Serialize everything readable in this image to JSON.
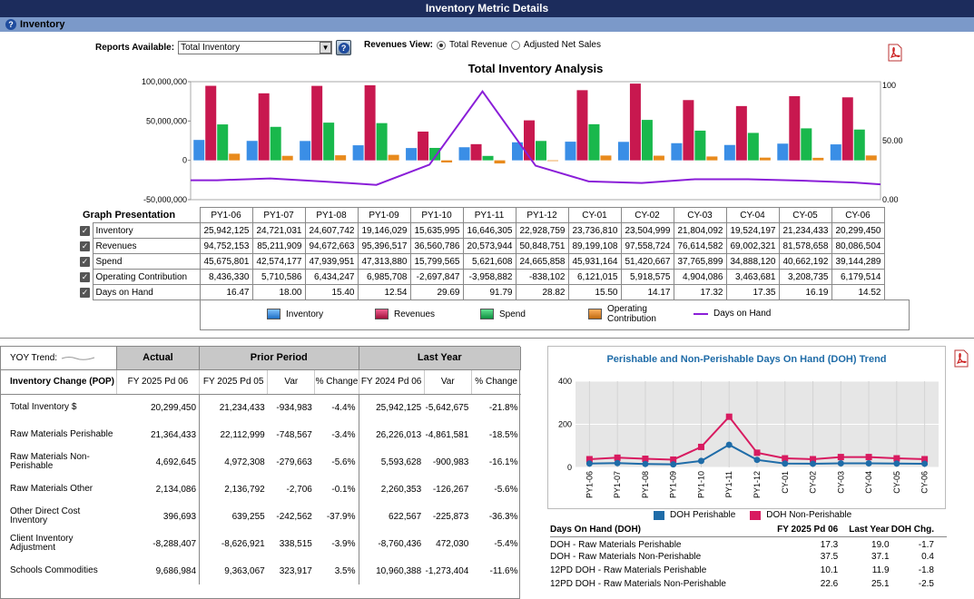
{
  "window": {
    "title": "Inventory Metric Details",
    "section": "Inventory"
  },
  "controls": {
    "reports_label": "Reports Available:",
    "reports_value": "Total Inventory",
    "revenues_label": "Revenues View:",
    "radio_total": "Total Revenue",
    "radio_adjusted": "Adjusted Net Sales",
    "selected_view": "Total Revenue"
  },
  "chart_data": {
    "type": "bar",
    "title": "Total Inventory Analysis",
    "categories": [
      "PY1-06",
      "PY1-07",
      "PY1-08",
      "PY1-09",
      "PY1-10",
      "PY1-11",
      "PY1-12",
      "CY-01",
      "CY-02",
      "CY-03",
      "CY-04",
      "CY-05",
      "CY-06"
    ],
    "ylim": [
      -50000000,
      100000000
    ],
    "yticks": [
      "100,000,000",
      "50,000,000",
      "0",
      "-50,000,000"
    ],
    "y2lim": [
      0,
      100
    ],
    "y2ticks": [
      "100",
      "50.00",
      "0.00"
    ],
    "series": [
      {
        "name": "Inventory",
        "color": "#3a8ee6",
        "values": [
          25942125,
          24721031,
          24607742,
          19146029,
          15635995,
          16646305,
          22928759,
          23736810,
          23504999,
          21804092,
          19524197,
          21234433,
          20299450
        ]
      },
      {
        "name": "Revenues",
        "color": "#c8184f",
        "values": [
          94752153,
          85211909,
          94672663,
          95396517,
          36560786,
          20573944,
          50848751,
          89199108,
          97558724,
          76614582,
          69002321,
          81578658,
          80086504
        ]
      },
      {
        "name": "Spend",
        "color": "#19b84c",
        "values": [
          45675801,
          42574177,
          47939951,
          47313880,
          15799565,
          5621608,
          24665858,
          45931164,
          51420667,
          37765899,
          34888120,
          40662192,
          39144289
        ]
      },
      {
        "name": "Operating Contribution",
        "color": "#e88a1c",
        "values": [
          8436330,
          5710586,
          6434247,
          6985708,
          -2697847,
          -3958882,
          -838102,
          6121015,
          5918575,
          4904086,
          3463681,
          3208735,
          6179514
        ]
      },
      {
        "name": "Days on Hand",
        "color": "#8a1ed8",
        "axis": "secondary",
        "values": [
          16.47,
          18.0,
          15.4,
          12.54,
          29.69,
          91.79,
          28.82,
          15.5,
          14.17,
          17.32,
          17.35,
          16.19,
          14.52
        ]
      }
    ]
  },
  "graph_table": {
    "title": "Graph Presentation",
    "rows": [
      {
        "label": "Inventory",
        "values": [
          "25,942,125",
          "24,721,031",
          "24,607,742",
          "19,146,029",
          "15,635,995",
          "16,646,305",
          "22,928,759",
          "23,736,810",
          "23,504,999",
          "21,804,092",
          "19,524,197",
          "21,234,433",
          "20,299,450"
        ]
      },
      {
        "label": "Revenues",
        "values": [
          "94,752,153",
          "85,211,909",
          "94,672,663",
          "95,396,517",
          "36,560,786",
          "20,573,944",
          "50,848,751",
          "89,199,108",
          "97,558,724",
          "76,614,582",
          "69,002,321",
          "81,578,658",
          "80,086,504"
        ]
      },
      {
        "label": "Spend",
        "values": [
          "45,675,801",
          "42,574,177",
          "47,939,951",
          "47,313,880",
          "15,799,565",
          "5,621,608",
          "24,665,858",
          "45,931,164",
          "51,420,667",
          "37,765,899",
          "34,888,120",
          "40,662,192",
          "39,144,289"
        ]
      },
      {
        "label": "Operating Contribution",
        "values": [
          "8,436,330",
          "5,710,586",
          "6,434,247",
          "6,985,708",
          "-2,697,847",
          "-3,958,882",
          "-838,102",
          "6,121,015",
          "5,918,575",
          "4,904,086",
          "3,463,681",
          "3,208,735",
          "6,179,514"
        ]
      },
      {
        "label": "Days on Hand",
        "values": [
          "16.47",
          "18.00",
          "15.40",
          "12.54",
          "29.69",
          "91.79",
          "28.82",
          "15.50",
          "14.17",
          "17.32",
          "17.35",
          "16.19",
          "14.52"
        ]
      }
    ]
  },
  "legend": [
    "Inventory",
    "Revenues",
    "Spend",
    "Operating Contribution",
    "Days on Hand"
  ],
  "yoy": {
    "trend_label": "YOY Trend:",
    "headers": [
      "Actual",
      "Prior Period",
      "Last Year"
    ],
    "sub": [
      "Inventory Change (POP)",
      "FY 2025 Pd 06",
      "FY 2025 Pd 05",
      "Var",
      "% Change",
      "FY 2024 Pd 06",
      "Var",
      "% Change"
    ],
    "rows": [
      [
        "Total Inventory $",
        "20,299,450",
        "21,234,433",
        "-934,983",
        "-4.4%",
        "25,942,125",
        "-5,642,675",
        "-21.8%"
      ],
      [
        "Raw Materials Perishable",
        "21,364,433",
        "22,112,999",
        "-748,567",
        "-3.4%",
        "26,226,013",
        "-4,861,581",
        "-18.5%"
      ],
      [
        "Raw Materials Non-Perishable",
        "4,692,645",
        "4,972,308",
        "-279,663",
        "-5.6%",
        "5,593,628",
        "-900,983",
        "-16.1%"
      ],
      [
        "Raw Materials Other",
        "2,134,086",
        "2,136,792",
        "-2,706",
        "-0.1%",
        "2,260,353",
        "-126,267",
        "-5.6%"
      ],
      [
        "Other Direct Cost Inventory",
        "396,693",
        "639,255",
        "-242,562",
        "-37.9%",
        "622,567",
        "-225,873",
        "-36.3%"
      ],
      [
        "Client Inventory Adjustment",
        "-8,288,407",
        "-8,626,921",
        "338,515",
        "-3.9%",
        "-8,760,436",
        "472,030",
        "-5.4%"
      ],
      [
        "Schools Commodities",
        "9,686,984",
        "9,363,067",
        "323,917",
        "3.5%",
        "10,960,388",
        "-1,273,404",
        "-11.6%"
      ]
    ]
  },
  "doh_chart": {
    "type": "line",
    "title": "Perishable and Non-Perishable Days On Hand (DOH) Trend",
    "categories": [
      "PY1-06",
      "PY1-07",
      "PY1-08",
      "PY1-09",
      "PY1-10",
      "PY1-11",
      "PY1-12",
      "CY-01",
      "CY-02",
      "CY-03",
      "CY-04",
      "CY-05",
      "CY-06"
    ],
    "ylim": [
      0,
      400
    ],
    "yticks": [
      "400",
      "200",
      "0"
    ],
    "series": [
      {
        "name": "DOH Perishable",
        "color": "#1f6ca8",
        "values": [
          18,
          20,
          16,
          14,
          30,
          105,
          35,
          18,
          17,
          19,
          19,
          18,
          17
        ]
      },
      {
        "name": "DOH Non-Perishable",
        "color": "#d81b60",
        "values": [
          38,
          45,
          40,
          36,
          95,
          235,
          68,
          42,
          38,
          48,
          48,
          42,
          38
        ]
      }
    ]
  },
  "doh_table": {
    "headers": [
      "Days On Hand (DOH)",
      "FY 2025 Pd 06",
      "Last Year",
      "DOH Chg."
    ],
    "rows": [
      [
        "DOH - Raw Materials Perishable",
        "17.3",
        "19.0",
        "-1.7"
      ],
      [
        "DOH - Raw Materials Non-Perishable",
        "37.5",
        "37.1",
        "0.4"
      ],
      [
        "12PD DOH - Raw Materials Perishable",
        "10.1",
        "11.9",
        "-1.8"
      ],
      [
        "12PD DOH - Raw Materials Non-Perishable",
        "22.6",
        "25.1",
        "-2.5"
      ]
    ]
  }
}
